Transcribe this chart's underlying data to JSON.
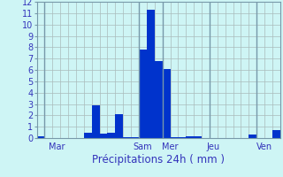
{
  "title": "",
  "xlabel": "Précipitations 24h ( mm )",
  "background_color": "#cef5f5",
  "bar_color": "#0033cc",
  "grid_color": "#aabbbb",
  "ylim": [
    0,
    12
  ],
  "yticks": [
    0,
    1,
    2,
    3,
    4,
    5,
    6,
    7,
    8,
    9,
    10,
    11,
    12
  ],
  "day_labels": [
    "Mar",
    "Sam",
    "Mer",
    "Jeu",
    "Ven"
  ],
  "day_tick_positions": [
    2,
    13,
    16.5,
    22,
    28.5
  ],
  "vline_positions": [
    0.5,
    12.5,
    15.5,
    21.5,
    27.5
  ],
  "n_bars": 31,
  "bar_values": [
    0.15,
    0.0,
    0.0,
    0.0,
    0.0,
    0.0,
    0.45,
    2.85,
    0.4,
    0.5,
    2.1,
    0.1,
    0.1,
    7.8,
    11.3,
    6.8,
    6.1,
    0.1,
    0.1,
    0.15,
    0.15,
    0.0,
    0.0,
    0.0,
    0.0,
    0.0,
    0.0,
    0.3,
    0.0,
    0.0,
    0.7
  ],
  "xlabel_fontsize": 8.5,
  "tick_fontsize": 7,
  "label_color": "#3333bb"
}
